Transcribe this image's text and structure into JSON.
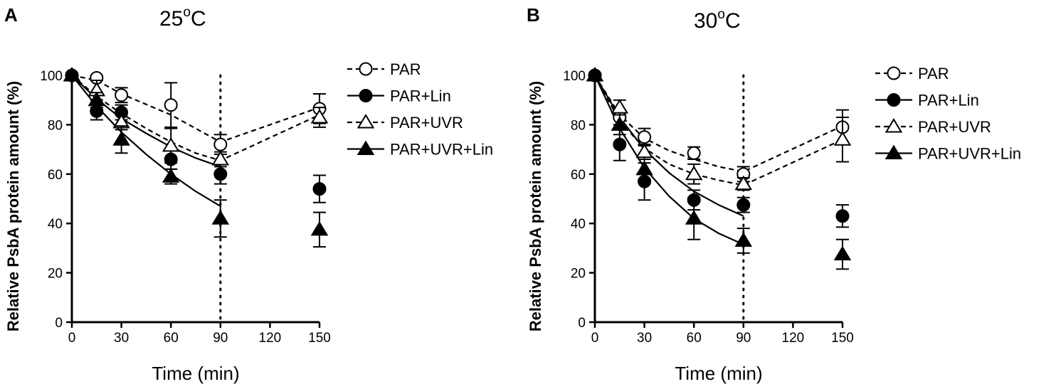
{
  "chart_data": [
    {
      "type": "scatter",
      "panel": "A",
      "title": "25",
      "title_sup": "o",
      "title_suffix": "C",
      "xlabel": "Time (min)",
      "ylabel": "Relative PsbA protein amount (%)",
      "xlim": [
        0,
        150
      ],
      "ylim": [
        0,
        100
      ],
      "xticks": [
        0,
        30,
        60,
        90,
        120,
        150
      ],
      "yticks": [
        0,
        20,
        40,
        60,
        80,
        100
      ],
      "vline_x": 90,
      "legend_position": "right",
      "series": [
        {
          "name": "PAR",
          "marker": "circle-open",
          "line": "dashed",
          "fit_until": 90,
          "x": [
            0,
            15,
            30,
            60,
            90,
            150
          ],
          "y": [
            100,
            99,
            92,
            88,
            72,
            86.5
          ],
          "err": [
            0,
            1,
            3,
            9,
            4,
            6
          ]
        },
        {
          "name": "PAR+Lin",
          "marker": "circle-filled",
          "line": "solid",
          "fit_until": 90,
          "x": [
            0,
            15,
            30,
            60,
            90,
            150
          ],
          "y": [
            100,
            85.5,
            85,
            66,
            60,
            54
          ],
          "err": [
            0,
            3.5,
            3,
            4,
            4,
            5.5
          ]
        },
        {
          "name": "PAR+UVR",
          "marker": "triangle-open",
          "line": "dashed",
          "fit_until": 90,
          "x": [
            0,
            15,
            30,
            60,
            90,
            150
          ],
          "y": [
            100,
            94,
            81,
            71.5,
            66,
            83
          ],
          "err": [
            0,
            4,
            3,
            7,
            3,
            4
          ]
        },
        {
          "name": "PAR+UVR+Lin",
          "marker": "triangle-filled",
          "line": "solid",
          "fit_until": 90,
          "x": [
            0,
            15,
            30,
            60,
            90,
            150
          ],
          "y": [
            100,
            90,
            74,
            59,
            42,
            37.5
          ],
          "err": [
            0,
            3,
            5.5,
            3,
            7.5,
            7
          ]
        }
      ],
      "fit_lines": [
        {
          "series": "PAR",
          "x": [
            0,
            15,
            30,
            60,
            90,
            150
          ],
          "y": [
            100,
            98,
            92.5,
            84,
            73,
            87
          ]
        },
        {
          "series": "PAR+UVR",
          "x": [
            0,
            15,
            30,
            45,
            60,
            75,
            90,
            150
          ],
          "y": [
            100,
            91.5,
            84.5,
            78.5,
            73,
            68.5,
            65.5,
            84
          ]
        },
        {
          "series": "PAR+Lin",
          "x": [
            0,
            15,
            30,
            45,
            60,
            75,
            90
          ],
          "y": [
            100,
            90.5,
            82.5,
            76.5,
            71,
            66.5,
            63
          ]
        },
        {
          "series": "PAR+UVR+Lin",
          "x": [
            0,
            15,
            30,
            45,
            60,
            75,
            90
          ],
          "y": [
            100,
            87.5,
            77,
            68,
            60,
            53,
            47
          ]
        }
      ]
    },
    {
      "type": "scatter",
      "panel": "B",
      "title": "30",
      "title_sup": "o",
      "title_suffix": "C",
      "xlabel": "Time (min)",
      "ylabel": "Relative PsbA protein amount (%)",
      "xlim": [
        0,
        150
      ],
      "ylim": [
        0,
        100
      ],
      "xticks": [
        0,
        30,
        60,
        90,
        120,
        150
      ],
      "yticks": [
        0,
        20,
        40,
        60,
        80,
        100
      ],
      "vline_x": 90,
      "legend_position": "right",
      "series": [
        {
          "name": "PAR",
          "marker": "circle-open",
          "line": "dashed",
          "fit_until": 90,
          "x": [
            0,
            15,
            30,
            60,
            90,
            150
          ],
          "y": [
            100,
            83,
            75,
            68.5,
            60,
            79
          ],
          "err": [
            0,
            3,
            3.5,
            2.5,
            3,
            7
          ]
        },
        {
          "name": "PAR+Lin",
          "marker": "circle-filled",
          "line": "solid",
          "fit_until": 90,
          "x": [
            0,
            15,
            30,
            60,
            90,
            150
          ],
          "y": [
            100,
            72,
            57,
            49.5,
            47.5,
            43
          ],
          "err": [
            0,
            6.5,
            7.5,
            4,
            3,
            4.5
          ]
        },
        {
          "name": "PAR+UVR",
          "marker": "triangle-open",
          "line": "dashed",
          "fit_until": 90,
          "x": [
            0,
            15,
            30,
            60,
            90,
            150
          ],
          "y": [
            100,
            87,
            69,
            60,
            56,
            74
          ],
          "err": [
            0,
            3,
            3,
            4,
            2.5,
            9
          ]
        },
        {
          "name": "PAR+UVR+Lin",
          "marker": "triangle-filled",
          "line": "solid",
          "fit_until": 90,
          "x": [
            0,
            15,
            30,
            60,
            90,
            150
          ],
          "y": [
            100,
            80,
            62,
            42,
            33,
            27.5
          ],
          "err": [
            0,
            4,
            4,
            8.5,
            5,
            6
          ]
        }
      ],
      "fit_lines": [
        {
          "series": "PAR",
          "x": [
            0,
            15,
            30,
            45,
            60,
            75,
            90,
            150
          ],
          "y": [
            100,
            84,
            74.5,
            69.5,
            66,
            63,
            61,
            79.5
          ]
        },
        {
          "series": "PAR+UVR",
          "x": [
            0,
            15,
            30,
            45,
            60,
            75,
            90,
            150
          ],
          "y": [
            100,
            81.5,
            70.5,
            64,
            60,
            57.5,
            55.5,
            74
          ]
        },
        {
          "series": "PAR+Lin",
          "x": [
            0,
            15,
            30,
            45,
            60,
            75,
            90
          ],
          "y": [
            100,
            83,
            70,
            60.5,
            53,
            47.5,
            43
          ]
        },
        {
          "series": "PAR+UVR+Lin",
          "x": [
            0,
            15,
            30,
            45,
            60,
            75,
            90
          ],
          "y": [
            100,
            78.5,
            62.5,
            51,
            42,
            36,
            31.5
          ]
        }
      ]
    }
  ]
}
